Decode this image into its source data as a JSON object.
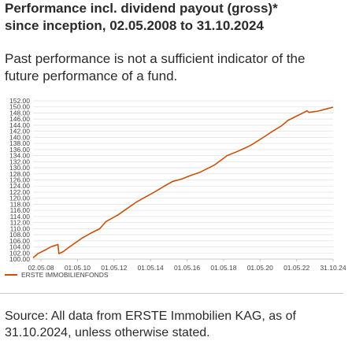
{
  "heading": {
    "title_line1": "Performance incl. dividend payout (gross)*",
    "title_line2": "since inception, 02.05.2008 to 31.10.2024"
  },
  "disclaimer": {
    "line1": "Past performance is not a sufficient indicator of the",
    "line2": "future performance of a fund."
  },
  "source": {
    "line1": "Source: All data from ERSTE Immobilien KAG, as of",
    "line2": "31.10.2024, unless otherwise stated."
  },
  "chart_data": {
    "type": "line",
    "title": "",
    "xlabel": "",
    "ylabel": "",
    "ylim": [
      100,
      152
    ],
    "grid": "horizontal",
    "legend_position": "bottom-left",
    "y_ticks": [
      "100.00",
      "102.00",
      "104.00",
      "106.00",
      "108.00",
      "110.00",
      "112.00",
      "114.00",
      "116.00",
      "118.00",
      "120.00",
      "122.00",
      "124.00",
      "126.00",
      "128.00",
      "130.00",
      "132.00",
      "134.00",
      "136.00",
      "138.00",
      "140.00",
      "142.00",
      "144.00",
      "146.00",
      "148.00",
      "150.00",
      "152.00"
    ],
    "x_ticks": [
      "02.05.08",
      "01.05.10",
      "01.05.12",
      "01.05.14",
      "01.05.16",
      "01.05.18",
      "01.05.20",
      "01.05.22",
      "31.10.24"
    ],
    "series": [
      {
        "name": "ERSTE IMMOBILIENFONDS",
        "color": "#c8500a",
        "x": [
          2008.33,
          2008.6,
          2009.0,
          2009.3,
          2009.7,
          2009.75,
          2010.0,
          2010.33,
          2011.0,
          2011.5,
          2012.0,
          2012.33,
          2013.0,
          2013.5,
          2014.0,
          2014.33,
          2015.0,
          2015.5,
          2016.0,
          2016.5,
          2017.0,
          2017.5,
          2018.0,
          2018.33,
          2019.0,
          2019.5,
          2020.0,
          2020.33,
          2021.0,
          2021.5,
          2022.0,
          2022.33,
          2023.0,
          2023.4,
          2023.5,
          2024.0,
          2024.5,
          2024.83
        ],
        "y": [
          100.4,
          101.8,
          103.0,
          104.0,
          104.8,
          101.8,
          102.5,
          104.0,
          106.8,
          108.5,
          110.0,
          112.3,
          114.5,
          116.6,
          118.7,
          119.8,
          122.0,
          123.8,
          125.5,
          126.3,
          127.5,
          128.5,
          130.0,
          131.0,
          134.0,
          135.2,
          136.5,
          137.5,
          140.0,
          142.0,
          143.8,
          145.5,
          147.5,
          148.7,
          148.2,
          148.6,
          149.4,
          149.9
        ]
      }
    ]
  }
}
